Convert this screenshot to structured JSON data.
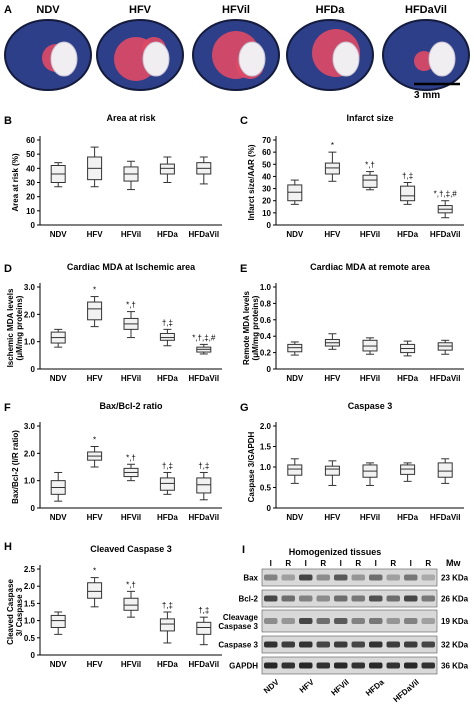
{
  "panel_a": {
    "letter": "A",
    "labels": [
      "NDV",
      "HFV",
      "HFVil",
      "HFDa",
      "HFDaVil"
    ],
    "scale_bar": "3 mm",
    "colors": {
      "viable_blue": "#2d3f88",
      "risk_red": "#e04a66",
      "infarct_white": "#f1eef2",
      "dark": "#141b3c"
    }
  },
  "western_blot": {
    "letter": "I",
    "title": "Homogenized tissues",
    "mw_header": "Mw",
    "lane_headers": [
      "I",
      "R",
      "I",
      "R",
      "I",
      "R",
      "I",
      "R",
      "I",
      "R"
    ],
    "proteins": [
      {
        "name": "Bax",
        "mw": "23 KDa"
      },
      {
        "name": "Bcl-2",
        "mw": "26 KDa"
      },
      {
        "name": "Cleavage Caspase 3",
        "mw": "19 KDa"
      },
      {
        "name": "Caspase 3",
        "mw": "32 KDa"
      },
      {
        "name": "GAPDH",
        "mw": "36 KDa"
      }
    ],
    "group_labels": [
      "NDV",
      "HFV",
      "HFVil",
      "HFDa",
      "HFDaVil"
    ]
  },
  "chart_data": [
    {
      "panel": "B",
      "type": "box",
      "title": "Area at risk",
      "xlabel": "",
      "ylabel": "Area at risk (%)",
      "categories": [
        "NDV",
        "HFV",
        "HFVil",
        "HFDa",
        "HFDaVil"
      ],
      "ylim": [
        0,
        60
      ],
      "yticks": [
        "0",
        "10",
        "20",
        "30",
        "40",
        "50",
        "60"
      ],
      "series": [
        {
          "category": "NDV",
          "min": 27,
          "q1": 30,
          "median": 36,
          "q3": 42,
          "max": 44,
          "annotation": ""
        },
        {
          "category": "HFV",
          "min": 27,
          "q1": 32,
          "median": 40,
          "q3": 48,
          "max": 55,
          "annotation": ""
        },
        {
          "category": "HFVil",
          "min": 25,
          "q1": 31,
          "median": 36,
          "q3": 41,
          "max": 45,
          "annotation": ""
        },
        {
          "category": "HFDa",
          "min": 30,
          "q1": 36,
          "median": 40,
          "q3": 43,
          "max": 48,
          "annotation": ""
        },
        {
          "category": "HFDaVil",
          "min": 29,
          "q1": 36,
          "median": 40,
          "q3": 44,
          "max": 48,
          "annotation": ""
        }
      ]
    },
    {
      "panel": "C",
      "type": "box",
      "title": "Infarct size",
      "xlabel": "",
      "ylabel": "Infarct size/AAR (%)",
      "categories": [
        "NDV",
        "HFV",
        "HFVil",
        "HFDa",
        "HFDaVil"
      ],
      "ylim": [
        0,
        70
      ],
      "yticks": [
        "0",
        "10",
        "20",
        "30",
        "40",
        "50",
        "60",
        "70"
      ],
      "series": [
        {
          "category": "NDV",
          "min": 17,
          "q1": 20,
          "median": 27,
          "q3": 33,
          "max": 37,
          "annotation": ""
        },
        {
          "category": "HFV",
          "min": 36,
          "q1": 42,
          "median": 47,
          "q3": 51,
          "max": 60,
          "annotation": "*"
        },
        {
          "category": "HFVil",
          "min": 29,
          "q1": 31,
          "median": 37,
          "q3": 41,
          "max": 44,
          "annotation": "*,†"
        },
        {
          "category": "HFDa",
          "min": 17,
          "q1": 20,
          "median": 24,
          "q3": 32,
          "max": 35,
          "annotation": "†,‡"
        },
        {
          "category": "HFDaVil",
          "min": 6,
          "q1": 10,
          "median": 13,
          "q3": 16,
          "max": 20,
          "annotation": "*,†,‡,#"
        }
      ]
    },
    {
      "panel": "D",
      "type": "box",
      "title": "Cardiac MDA at Ischemic area",
      "xlabel": "",
      "ylabel": "Ischemic MDA levels (μM/mg proteins)",
      "categories": [
        "NDV",
        "HFV",
        "HFVil",
        "HFDa",
        "HFDaVil"
      ],
      "ylim": [
        0,
        3
      ],
      "yticks": [
        "0",
        "1.0",
        "2.0",
        "3.0"
      ],
      "series": [
        {
          "category": "NDV",
          "min": 0.8,
          "q1": 0.95,
          "median": 1.15,
          "q3": 1.35,
          "max": 1.45,
          "annotation": ""
        },
        {
          "category": "HFV",
          "min": 1.55,
          "q1": 1.8,
          "median": 2.2,
          "q3": 2.45,
          "max": 2.65,
          "annotation": "*"
        },
        {
          "category": "HFVil",
          "min": 1.15,
          "q1": 1.45,
          "median": 1.65,
          "q3": 1.85,
          "max": 2.1,
          "annotation": "*,†"
        },
        {
          "category": "HFDa",
          "min": 0.85,
          "q1": 1.05,
          "median": 1.15,
          "q3": 1.3,
          "max": 1.45,
          "annotation": "†,‡"
        },
        {
          "category": "HFDaVil",
          "min": 0.55,
          "q1": 0.62,
          "median": 0.72,
          "q3": 0.8,
          "max": 0.9,
          "annotation": "*,†,‡,#"
        }
      ]
    },
    {
      "panel": "E",
      "type": "box",
      "title": "Cardiac MDA at remote area",
      "xlabel": "",
      "ylabel": "Remote MDA levels (μM/mg proteins)",
      "categories": [
        "NDV",
        "HFV",
        "HFVil",
        "HFDa",
        "HFDaVil"
      ],
      "ylim": [
        0,
        1
      ],
      "yticks": [
        "0",
        "0.2",
        "0.4",
        "0.6",
        "0.8",
        "1.0"
      ],
      "series": [
        {
          "category": "NDV",
          "min": 0.17,
          "q1": 0.21,
          "median": 0.26,
          "q3": 0.3,
          "max": 0.33,
          "annotation": ""
        },
        {
          "category": "HFV",
          "min": 0.24,
          "q1": 0.28,
          "median": 0.32,
          "q3": 0.36,
          "max": 0.43,
          "annotation": ""
        },
        {
          "category": "HFVil",
          "min": 0.18,
          "q1": 0.22,
          "median": 0.28,
          "q3": 0.35,
          "max": 0.38,
          "annotation": ""
        },
        {
          "category": "HFDa",
          "min": 0.16,
          "q1": 0.2,
          "median": 0.25,
          "q3": 0.3,
          "max": 0.34,
          "annotation": ""
        },
        {
          "category": "HFDaVil",
          "min": 0.18,
          "q1": 0.23,
          "median": 0.28,
          "q3": 0.32,
          "max": 0.35,
          "annotation": ""
        }
      ]
    },
    {
      "panel": "F",
      "type": "box",
      "title": "Bax/Bcl-2 ratio",
      "xlabel": "",
      "ylabel": "Bax/Bcl-2 (I/R ratio)",
      "categories": [
        "NDV",
        "HFV",
        "HFVil",
        "HFDa",
        "HFDaVil"
      ],
      "ylim": [
        0,
        3
      ],
      "yticks": [
        "0",
        "1.0",
        "2.0",
        "3.0"
      ],
      "series": [
        {
          "category": "NDV",
          "min": 0.25,
          "q1": 0.5,
          "median": 0.75,
          "q3": 1.0,
          "max": 1.3,
          "annotation": ""
        },
        {
          "category": "HFV",
          "min": 1.5,
          "q1": 1.75,
          "median": 1.9,
          "q3": 2.05,
          "max": 2.25,
          "annotation": "*"
        },
        {
          "category": "HFVil",
          "min": 1.0,
          "q1": 1.15,
          "median": 1.3,
          "q3": 1.45,
          "max": 1.6,
          "annotation": "*,†"
        },
        {
          "category": "HFDa",
          "min": 0.5,
          "q1": 0.65,
          "median": 0.9,
          "q3": 1.1,
          "max": 1.3,
          "annotation": "†,‡"
        },
        {
          "category": "HFDaVil",
          "min": 0.3,
          "q1": 0.55,
          "median": 0.85,
          "q3": 1.1,
          "max": 1.3,
          "annotation": "†,‡"
        }
      ]
    },
    {
      "panel": "G",
      "type": "box",
      "title": "Caspase 3",
      "xlabel": "",
      "ylabel": "Caspase 3/GAPDH",
      "categories": [
        "NDV",
        "HFV",
        "HFVil",
        "HFDa",
        "HFDaVil"
      ],
      "ylim": [
        0,
        2
      ],
      "yticks": [
        "0",
        "0.5",
        "1.0",
        "1.5",
        "2.0"
      ],
      "series": [
        {
          "category": "NDV",
          "min": 0.6,
          "q1": 0.8,
          "median": 0.95,
          "q3": 1.05,
          "max": 1.2,
          "annotation": ""
        },
        {
          "category": "HFV",
          "min": 0.55,
          "q1": 0.8,
          "median": 0.95,
          "q3": 1.02,
          "max": 1.15,
          "annotation": ""
        },
        {
          "category": "HFVil",
          "min": 0.55,
          "q1": 0.75,
          "median": 0.9,
          "q3": 1.05,
          "max": 1.1,
          "annotation": ""
        },
        {
          "category": "HFDa",
          "min": 0.65,
          "q1": 0.82,
          "median": 0.95,
          "q3": 1.05,
          "max": 1.1,
          "annotation": ""
        },
        {
          "category": "HFDaVil",
          "min": 0.6,
          "q1": 0.75,
          "median": 0.9,
          "q3": 1.1,
          "max": 1.2,
          "annotation": ""
        }
      ]
    },
    {
      "panel": "H",
      "type": "box",
      "title": "Cleaved Caspase 3",
      "xlabel": "",
      "ylabel": "Cleaved Caspase 3/ Caspase 3",
      "categories": [
        "NDV",
        "HFV",
        "HFVil",
        "HFDa",
        "HFDaVil"
      ],
      "ylim": [
        0,
        2.5
      ],
      "yticks": [
        "0",
        "0.5",
        "1.0",
        "1.5",
        "2.0",
        "2.5"
      ],
      "series": [
        {
          "category": "NDV",
          "min": 0.6,
          "q1": 0.8,
          "median": 1.0,
          "q3": 1.15,
          "max": 1.25,
          "annotation": ""
        },
        {
          "category": "HFV",
          "min": 1.4,
          "q1": 1.65,
          "median": 1.85,
          "q3": 2.1,
          "max": 2.25,
          "annotation": "*"
        },
        {
          "category": "HFVil",
          "min": 1.1,
          "q1": 1.3,
          "median": 1.45,
          "q3": 1.65,
          "max": 1.85,
          "annotation": "*,†"
        },
        {
          "category": "HFDa",
          "min": 0.35,
          "q1": 0.7,
          "median": 0.9,
          "q3": 1.05,
          "max": 1.25,
          "annotation": "†,‡"
        },
        {
          "category": "HFDaVil",
          "min": 0.3,
          "q1": 0.6,
          "median": 0.8,
          "q3": 0.95,
          "max": 1.1,
          "annotation": "†,‡"
        }
      ]
    }
  ]
}
